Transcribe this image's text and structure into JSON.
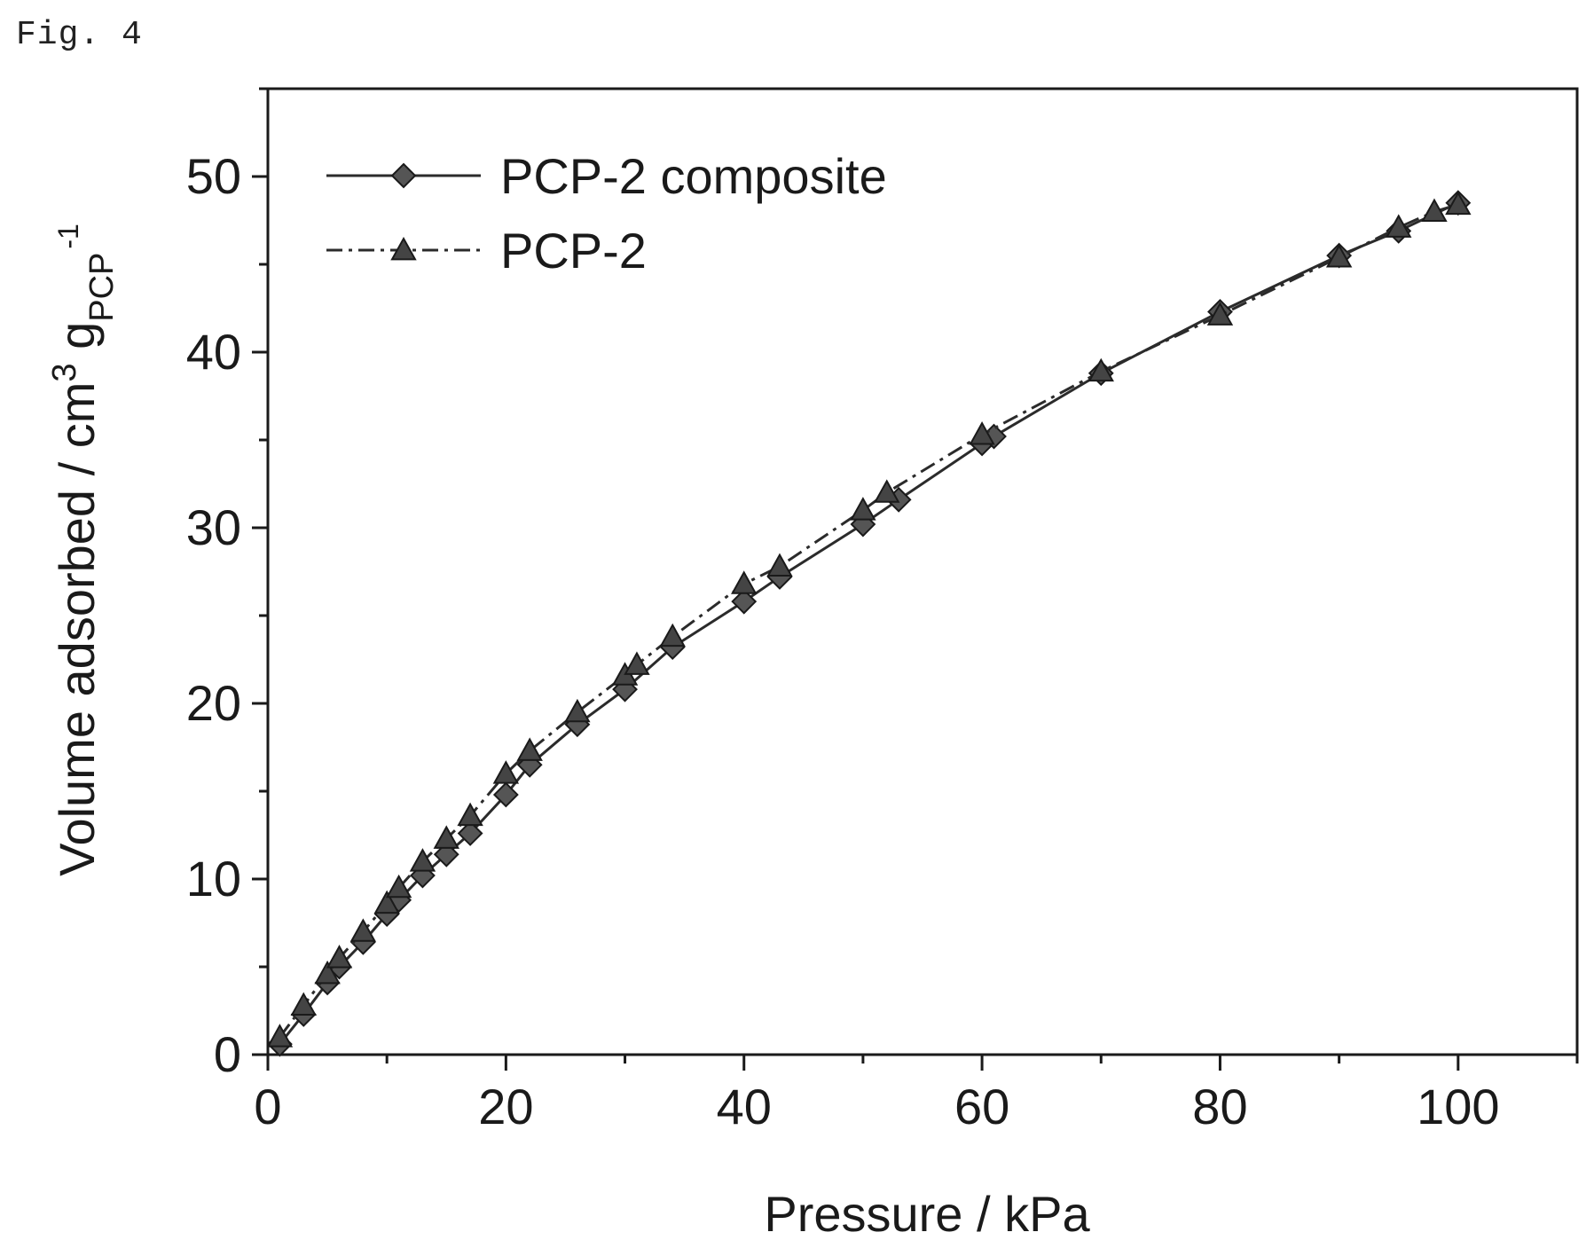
{
  "figure_label": "Fig. 4",
  "chart_data": {
    "type": "line",
    "xlabel": "Pressure / kPa",
    "ylabel": {
      "main": "Volume adsorbed / cm",
      "sup": "3",
      "g": " g",
      "sub": "PCP",
      "sup2": "-1"
    },
    "xlim": [
      0,
      110
    ],
    "ylim": [
      0,
      55
    ],
    "x_ticks": [
      0,
      20,
      40,
      60,
      80,
      100
    ],
    "x_tick_labels": [
      "0",
      "20",
      "40",
      "60",
      "80",
      "100"
    ],
    "y_ticks": [
      0,
      10,
      20,
      30,
      40,
      50
    ],
    "y_tick_labels": [
      "0",
      "10",
      "20",
      "30",
      "40",
      "50"
    ],
    "x_minor_step": 10,
    "y_minor_step": 5,
    "legend_position": "top-left",
    "grid": false,
    "series": [
      {
        "name": "PCP-2 composite",
        "marker": "diamond",
        "line": "solid",
        "color": "#2b2b2b",
        "x": [
          1,
          3,
          5,
          6,
          8,
          10,
          11,
          13,
          15,
          17,
          20,
          22,
          26,
          30,
          34,
          40,
          43,
          50,
          53,
          60,
          61,
          70,
          80,
          90,
          95,
          100
        ],
        "y": [
          0.6,
          2.3,
          4.1,
          5.0,
          6.4,
          8.0,
          8.8,
          10.2,
          11.4,
          12.6,
          14.8,
          16.5,
          18.8,
          20.8,
          23.2,
          25.8,
          27.2,
          30.2,
          31.6,
          34.8,
          35.2,
          38.8,
          42.3,
          45.5,
          46.9,
          48.5
        ]
      },
      {
        "name": "PCP-2",
        "marker": "triangle",
        "line": "dashdot",
        "color": "#2b2b2b",
        "x": [
          1,
          3,
          5,
          6,
          8,
          10,
          11,
          13,
          15,
          17,
          20,
          22,
          26,
          30,
          31,
          34,
          40,
          43,
          50,
          52,
          60,
          70,
          80,
          90,
          95,
          98,
          100
        ],
        "y": [
          1.0,
          2.8,
          4.6,
          5.5,
          7.0,
          8.6,
          9.5,
          11.0,
          12.3,
          13.6,
          16.0,
          17.3,
          19.5,
          21.6,
          22.2,
          23.8,
          26.8,
          27.8,
          31.0,
          32.0,
          35.3,
          38.9,
          42.1,
          45.4,
          47.1,
          48.0,
          48.4
        ]
      }
    ]
  }
}
